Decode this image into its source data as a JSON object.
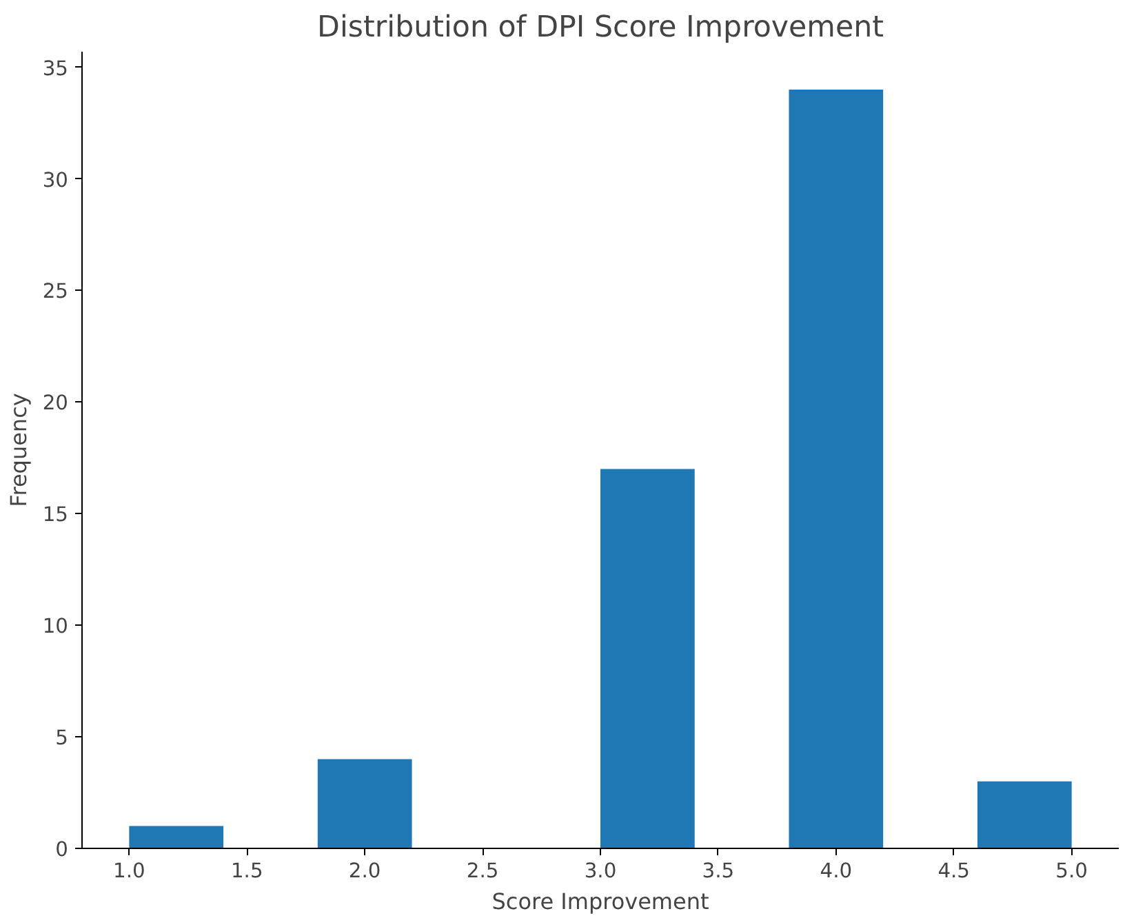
{
  "chart_data": {
    "type": "histogram",
    "title": "Distribution of DPI Score Improvement",
    "xlabel": "Score Improvement",
    "ylabel": "Frequency",
    "bins": [
      1.0,
      1.4,
      1.8,
      2.2,
      2.6,
      3.0,
      3.4,
      3.8,
      4.2,
      4.6,
      5.0
    ],
    "values": [
      1,
      0,
      4,
      0,
      0,
      17,
      0,
      34,
      0,
      3
    ],
    "color": "#1f77b4",
    "xlim": [
      0.8,
      5.2
    ],
    "ylim": [
      0,
      35.7
    ],
    "xticks": [
      {
        "value": 1.0,
        "label": "1.0"
      },
      {
        "value": 1.5,
        "label": "1.5"
      },
      {
        "value": 2.0,
        "label": "2.0"
      },
      {
        "value": 2.5,
        "label": "2.5"
      },
      {
        "value": 3.0,
        "label": "3.0"
      },
      {
        "value": 3.5,
        "label": "3.5"
      },
      {
        "value": 4.0,
        "label": "4.0"
      },
      {
        "value": 4.5,
        "label": "4.5"
      },
      {
        "value": 5.0,
        "label": "5.0"
      }
    ],
    "yticks": [
      0,
      5,
      10,
      15,
      20,
      25,
      30,
      35
    ],
    "grid": false
  }
}
